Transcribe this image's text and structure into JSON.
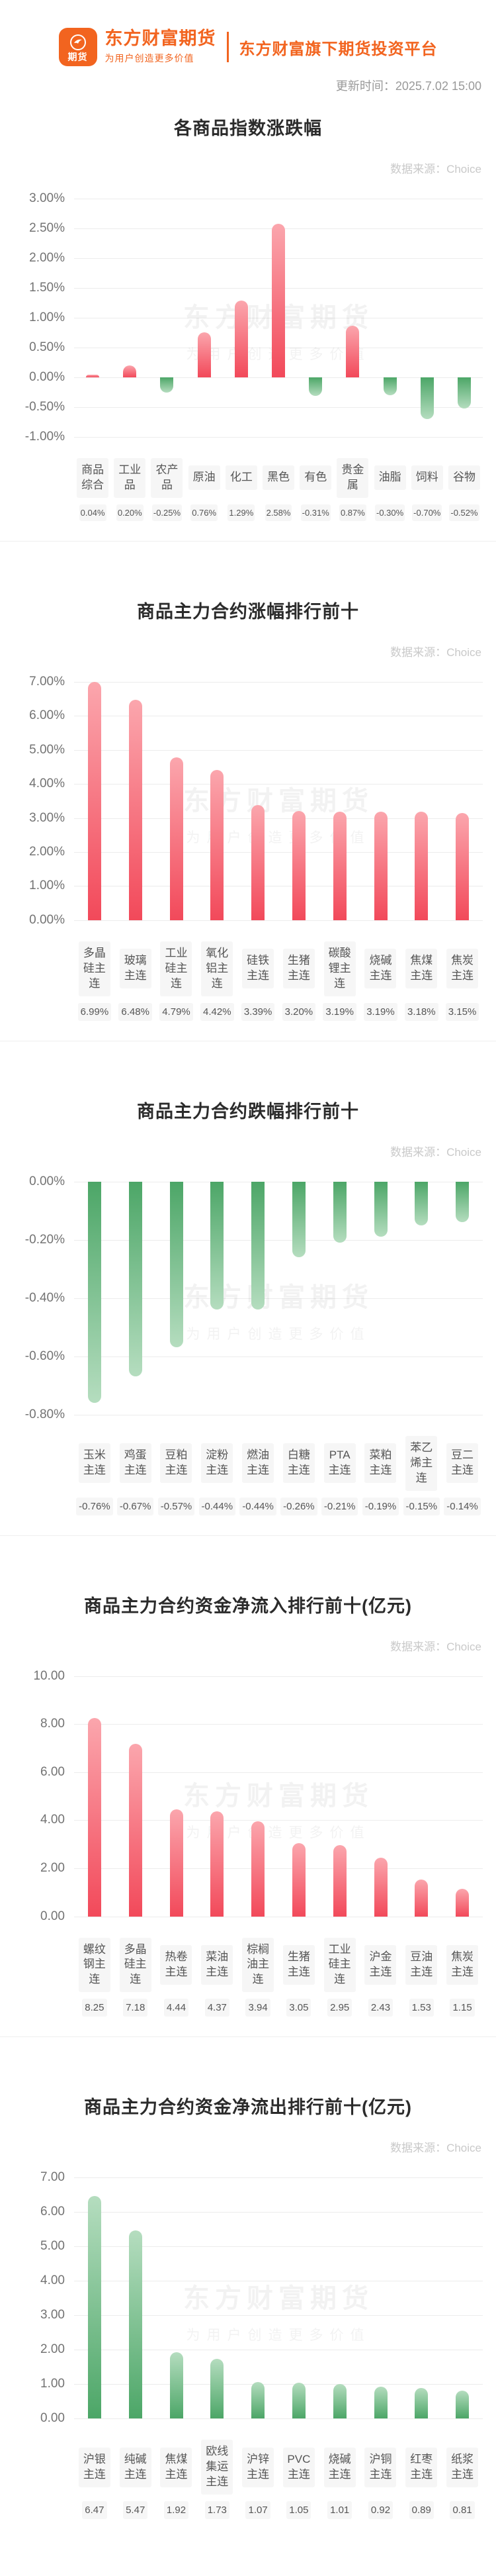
{
  "header": {
    "logo": {
      "icon_text": "期货",
      "title": "东方财富期货",
      "subtitle": "为用户创造更多价值",
      "tagline": "东方财富旗下期货投资平台"
    },
    "update_time": "更新时间：2025.7.02 15:00"
  },
  "watermark": {
    "line1": "东方财富期货",
    "line2": "为用户创造更多价值"
  },
  "colors": {
    "accent_orange": "#f2641f",
    "red_deep": "#f2495a",
    "red_light": "#fba6ad",
    "green_deep": "#4ca667",
    "green_light": "#b5ddbf",
    "grid": "#ececec",
    "label_bg": "#f6f6f6"
  },
  "chart_data": [
    {
      "type": "bar",
      "title": "各商品指数涨跌幅",
      "source": "数据来源：Choice",
      "categories": [
        "商品综合",
        "工业品",
        "农产品",
        "原油",
        "化工",
        "黑色",
        "有色",
        "贵金属",
        "油脂",
        "饲料",
        "谷物"
      ],
      "values": [
        0.04,
        0.2,
        -0.25,
        0.76,
        1.29,
        2.58,
        -0.31,
        0.87,
        -0.3,
        -0.7,
        -0.52
      ],
      "value_labels": [
        "0.04%",
        "0.20%",
        "-0.25%",
        "0.76%",
        "1.29%",
        "2.58%",
        "-0.31%",
        "0.87%",
        "-0.30%",
        "-0.70%",
        "-0.52%"
      ],
      "ylim": [
        -1.0,
        3.0
      ],
      "ytick_step": 0.5,
      "ytick_format": "percent",
      "bar_color": "by_sign",
      "grid": true,
      "legend": false
    },
    {
      "type": "bar",
      "title": "商品主力合约涨幅排行前十",
      "source": "数据来源：Choice",
      "categories": [
        "多晶硅主连",
        "玻璃主连",
        "工业硅主连",
        "氧化铝主连",
        "硅铁主连",
        "生猪主连",
        "碳酸锂主连",
        "烧碱主连",
        "焦煤主连",
        "焦炭主连"
      ],
      "values": [
        6.99,
        6.48,
        4.79,
        4.42,
        3.39,
        3.2,
        3.19,
        3.19,
        3.18,
        3.15
      ],
      "value_labels": [
        "6.99%",
        "6.48%",
        "4.79%",
        "4.42%",
        "3.39%",
        "3.20%",
        "3.19%",
        "3.19%",
        "3.18%",
        "3.15%"
      ],
      "ylim": [
        0,
        7.0
      ],
      "ytick_step": 1.0,
      "ytick_format": "percent",
      "bar_color": "red",
      "grid": true,
      "legend": false
    },
    {
      "type": "bar",
      "title": "商品主力合约跌幅排行前十",
      "source": "数据来源：Choice",
      "categories": [
        "玉米主连",
        "鸡蛋主连",
        "豆粕主连",
        "淀粉主连",
        "燃油主连",
        "白糖主连",
        "PTA主连",
        "菜粕主连",
        "苯乙烯主连",
        "豆二主连"
      ],
      "values": [
        -0.76,
        -0.67,
        -0.57,
        -0.44,
        -0.44,
        -0.26,
        -0.21,
        -0.19,
        -0.15,
        -0.14
      ],
      "value_labels": [
        "-0.76%",
        "-0.67%",
        "-0.57%",
        "-0.44%",
        "-0.44%",
        "-0.26%",
        "-0.21%",
        "-0.19%",
        "-0.15%",
        "-0.14%"
      ],
      "ylim": [
        -0.8,
        0
      ],
      "ytick_step": 0.2,
      "ytick_format": "percent",
      "bar_color": "green",
      "grid": true,
      "legend": false
    },
    {
      "type": "bar",
      "title": "商品主力合约资金净流入排行前十(亿元)",
      "source": "数据来源：Choice",
      "categories": [
        "螺纹钢主连",
        "多晶硅主连",
        "热卷主连",
        "菜油主连",
        "棕榈油主连",
        "生猪主连",
        "工业硅主连",
        "沪金主连",
        "豆油主连",
        "焦炭主连"
      ],
      "values": [
        8.25,
        7.18,
        4.44,
        4.37,
        3.94,
        3.05,
        2.95,
        2.43,
        1.53,
        1.15
      ],
      "value_labels": [
        "8.25",
        "7.18",
        "4.44",
        "4.37",
        "3.94",
        "3.05",
        "2.95",
        "2.43",
        "1.53",
        "1.15"
      ],
      "ylim": [
        0,
        10.0
      ],
      "ytick_step": 2.0,
      "ytick_format": "number",
      "bar_color": "red",
      "grid": true,
      "legend": false
    },
    {
      "type": "bar",
      "title": "商品主力合约资金净流出排行前十(亿元)",
      "source": "数据来源：Choice",
      "categories": [
        "沪银主连",
        "纯碱主连",
        "焦煤主连",
        "欧线集运主连",
        "沪锌主连",
        "PVC主连",
        "烧碱主连",
        "沪铜主连",
        "红枣主连",
        "纸浆主连"
      ],
      "values": [
        6.47,
        5.47,
        1.92,
        1.73,
        1.07,
        1.05,
        1.01,
        0.92,
        0.89,
        0.81
      ],
      "value_labels": [
        "6.47",
        "5.47",
        "1.92",
        "1.73",
        "1.07",
        "1.05",
        "1.01",
        "0.92",
        "0.89",
        "0.81"
      ],
      "ylim": [
        0,
        7.0
      ],
      "ytick_step": 1.0,
      "ytick_format": "number",
      "bar_color": "green",
      "grid": true,
      "legend": false
    }
  ]
}
